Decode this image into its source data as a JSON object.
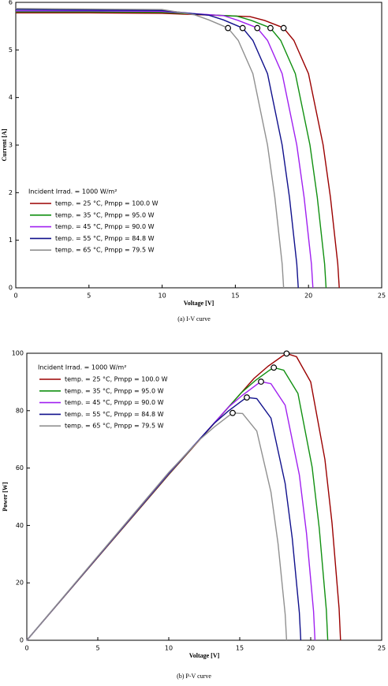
{
  "chart_data": [
    {
      "type": "line",
      "caption": "(a) I-V curve",
      "xlabel": "Voltage [V]",
      "ylabel": "Current [A]",
      "legend_title": "Incident Irrad. = 1000 W/m²",
      "legend": "left",
      "xlim": [
        0,
        25
      ],
      "xticks": [
        0,
        5,
        10,
        15,
        20,
        25
      ],
      "ylim": [
        0,
        6
      ],
      "yticks": [
        0,
        1,
        2,
        3,
        4,
        5,
        6
      ],
      "series": [
        {
          "name": "temp. = 25 °C,  Pmpp = 100.0 W",
          "color": "#9b0000",
          "x": [
            0,
            5,
            10,
            16.0,
            17.0,
            18.0,
            18.3,
            19.0,
            20.0,
            21.0,
            21.5,
            22.0,
            22.1
          ],
          "values": [
            5.78,
            5.78,
            5.77,
            5.7,
            5.62,
            5.5,
            5.46,
            5.2,
            4.5,
            3.0,
            1.9,
            0.5,
            0
          ]
        },
        {
          "name": "temp. = 35 °C,  Pmpp = 95.0 W",
          "color": "#119011",
          "x": [
            0,
            5,
            10,
            15.1,
            16.1,
            17.1,
            17.4,
            18.1,
            19.1,
            20.1,
            20.6,
            21.1,
            21.2
          ],
          "values": [
            5.8,
            5.8,
            5.79,
            5.71,
            5.62,
            5.5,
            5.46,
            5.2,
            4.5,
            3.0,
            1.9,
            0.5,
            0
          ]
        },
        {
          "name": "temp. = 45 °C,  Pmpp = 90.0 W",
          "color": "#a020f0",
          "x": [
            0,
            5,
            10,
            14.2,
            15.2,
            16.2,
            16.5,
            17.2,
            18.2,
            19.2,
            19.7,
            20.2,
            20.3
          ],
          "values": [
            5.82,
            5.82,
            5.81,
            5.72,
            5.62,
            5.5,
            5.46,
            5.2,
            4.5,
            3.0,
            1.9,
            0.5,
            0
          ]
        },
        {
          "name": "temp. = 55 °C,  Pmpp = 84.8 W",
          "color": "#10108c",
          "x": [
            0,
            5,
            10,
            13.2,
            14.2,
            15.2,
            15.5,
            16.2,
            17.2,
            18.2,
            18.7,
            19.2,
            19.3
          ],
          "values": [
            5.85,
            5.84,
            5.83,
            5.73,
            5.63,
            5.5,
            5.46,
            5.2,
            4.5,
            3.0,
            1.9,
            0.5,
            0
          ]
        },
        {
          "name": "temp. = 65 °C,  Pmpp = 79.5 W",
          "color": "#909090",
          "x": [
            0,
            5,
            10,
            12.2,
            13.2,
            14.2,
            14.5,
            15.2,
            16.2,
            17.2,
            17.7,
            18.2,
            18.3
          ],
          "values": [
            5.87,
            5.86,
            5.85,
            5.74,
            5.63,
            5.5,
            5.46,
            5.2,
            4.5,
            3.0,
            1.9,
            0.5,
            0
          ]
        }
      ],
      "markers": {
        "x": [
          18.3,
          17.4,
          16.5,
          15.5,
          14.5
        ],
        "values": [
          5.46,
          5.46,
          5.46,
          5.46,
          5.46
        ]
      }
    },
    {
      "type": "line",
      "caption": "(b) P-V curve",
      "xlabel": "Voltage [V]",
      "ylabel": "Power [W]",
      "legend_title": "Incident Irrad. = 1000 W/m²",
      "legend": "left",
      "xlim": [
        0,
        25
      ],
      "xticks": [
        0,
        5,
        10,
        15,
        20,
        25
      ],
      "ylim": [
        0,
        100
      ],
      "yticks": [
        0,
        20,
        40,
        60,
        80,
        100
      ],
      "series": [
        {
          "name": "temp. = 25 °C,  Pmpp = 100.0 W",
          "color": "#9b0000",
          "x": [
            0,
            5,
            10,
            16.0,
            17.0,
            18.0,
            18.3,
            19.0,
            20.0,
            21.0,
            21.5,
            22.0,
            22.1
          ],
          "values": [
            0,
            28.9,
            57.7,
            91.2,
            95.5,
            99.0,
            99.9,
            98.8,
            90.0,
            63.0,
            40.9,
            11.0,
            0
          ]
        },
        {
          "name": "temp. = 35 °C,  Pmpp = 95.0 W",
          "color": "#119011",
          "x": [
            0,
            5,
            10,
            15.1,
            16.1,
            17.1,
            17.4,
            18.1,
            19.1,
            20.1,
            20.6,
            21.1,
            21.2
          ],
          "values": [
            0,
            29.0,
            57.9,
            86.2,
            90.5,
            94.1,
            95.0,
            94.1,
            86.0,
            60.3,
            39.1,
            10.6,
            0
          ]
        },
        {
          "name": "temp. = 45 °C,  Pmpp = 90.0 W",
          "color": "#a020f0",
          "x": [
            0,
            5,
            10,
            14.2,
            15.2,
            16.2,
            16.5,
            17.2,
            18.2,
            19.2,
            19.7,
            20.2,
            20.3
          ],
          "values": [
            0,
            29.1,
            58.1,
            81.2,
            85.4,
            89.1,
            90.1,
            89.4,
            81.9,
            57.6,
            37.4,
            10.1,
            0
          ]
        },
        {
          "name": "temp. = 55 °C,  Pmpp = 84.8 W",
          "color": "#10108c",
          "x": [
            0,
            5,
            10,
            13.2,
            14.2,
            15.2,
            15.5,
            16.2,
            17.2,
            18.2,
            18.7,
            19.2,
            19.3
          ],
          "values": [
            0,
            29.2,
            58.3,
            75.6,
            79.9,
            83.6,
            84.6,
            84.2,
            77.4,
            54.6,
            35.5,
            9.6,
            0
          ]
        },
        {
          "name": "temp. = 65 °C,  Pmpp = 79.5 W",
          "color": "#909090",
          "x": [
            0,
            5,
            10,
            12.2,
            13.2,
            14.2,
            14.5,
            15.2,
            16.2,
            17.2,
            17.7,
            18.2,
            18.3
          ],
          "values": [
            0,
            29.3,
            58.5,
            70.0,
            74.3,
            78.1,
            79.2,
            79.0,
            72.9,
            51.6,
            33.6,
            9.1,
            0
          ]
        }
      ],
      "markers": {
        "x": [
          18.3,
          17.4,
          16.5,
          15.5,
          14.5
        ],
        "values": [
          99.9,
          95.0,
          90.1,
          84.6,
          79.2
        ]
      }
    }
  ]
}
